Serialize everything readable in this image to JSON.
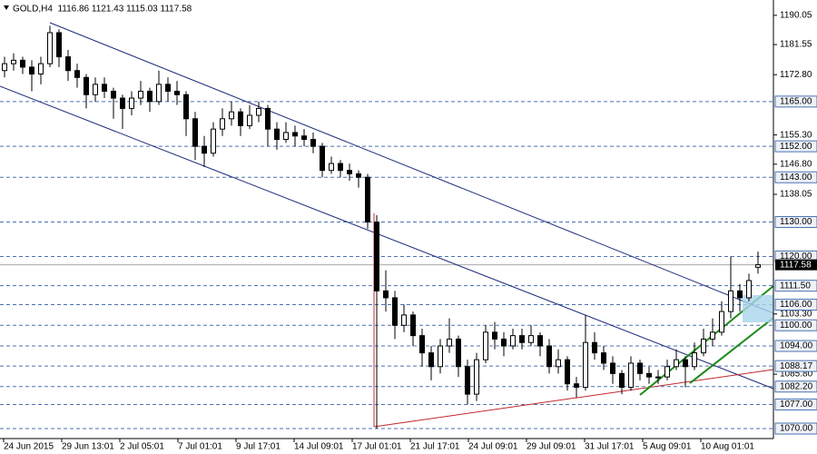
{
  "chart_data": {
    "type": "candlestick",
    "header": "GOLD,H4  1116.86 1121.43 1115.03 1117.58",
    "ylim": [
      1067.1,
      1194.5
    ],
    "yticks": [
      1190.05,
      1181.55,
      {
        "value": 1172.8,
        "label": "1172.80"
      },
      {
        "value": 1155.3,
        "label": "1155.30"
      },
      {
        "value": 1146.8,
        "label": "1146.80"
      },
      1138.05,
      {
        "value": 1103.3,
        "label": "1103.30"
      },
      {
        "value": 1085.8,
        "label": "1085.80"
      }
    ],
    "levels": [
      {
        "value": 1165,
        "label": "1165.00"
      },
      {
        "value": 1152,
        "label": "1152.00"
      },
      {
        "value": 1143,
        "label": "1143.00"
      },
      {
        "value": 1130,
        "label": "1130.00"
      },
      {
        "value": 1120,
        "label": "1120.00"
      },
      {
        "value": 1111.5,
        "label": "1111.50"
      },
      {
        "value": 1106,
        "label": "1106.00"
      },
      {
        "value": 1100,
        "label": "1100.00"
      },
      {
        "value": 1094,
        "label": "1094.00"
      },
      1088.17,
      {
        "value": 1082.2,
        "label": "1082.20"
      },
      {
        "value": 1077,
        "label": "1077.00"
      },
      {
        "value": 1070,
        "label": "1070.00"
      }
    ],
    "current_price": 1117.58,
    "xlabels": [
      "24 Jun 2015",
      "29 Jun 13:01",
      "2 Jul 05:01",
      "7 Jul 01:01",
      "9 Jul 17:01",
      "14 Jul 09:01",
      "17 Jul 01:01",
      "21 Jul 17:01",
      "24 Jul 09:01",
      "29 Jul 09:01",
      "31 Jul 17:01",
      "5 Aug 09:01",
      "10 Aug 01:01"
    ],
    "ohlc": [
      [
        1174,
        1178,
        1172,
        1176
      ],
      [
        1176,
        1179,
        1174,
        1177
      ],
      [
        1177,
        1178,
        1173,
        1175
      ],
      [
        1175,
        1177,
        1168,
        1173
      ],
      [
        1173,
        1178,
        1170,
        1176
      ],
      [
        1176,
        1187,
        1175,
        1185
      ],
      [
        1185,
        1186,
        1175,
        1178
      ],
      [
        1178,
        1180,
        1171,
        1174
      ],
      [
        1174,
        1176,
        1169,
        1172
      ],
      [
        1172,
        1173,
        1163,
        1167
      ],
      [
        1167,
        1172,
        1165,
        1170
      ],
      [
        1170,
        1172,
        1166,
        1168
      ],
      [
        1168,
        1169,
        1160,
        1166
      ],
      [
        1166,
        1167,
        1157,
        1163
      ],
      [
        1163,
        1168,
        1161,
        1166
      ],
      [
        1166,
        1171,
        1164,
        1168
      ],
      [
        1168,
        1169,
        1162,
        1165
      ],
      [
        1165,
        1174,
        1164,
        1170
      ],
      [
        1170,
        1172,
        1165,
        1168
      ],
      [
        1168,
        1171,
        1164,
        1167
      ],
      [
        1167,
        1168,
        1155,
        1160
      ],
      [
        1160,
        1162,
        1148,
        1152
      ],
      [
        1152,
        1155,
        1146,
        1150
      ],
      [
        1150,
        1159,
        1149,
        1157
      ],
      [
        1157,
        1163,
        1155,
        1160
      ],
      [
        1160,
        1165,
        1158,
        1162
      ],
      [
        1162,
        1163,
        1155,
        1158
      ],
      [
        1158,
        1164,
        1157,
        1161
      ],
      [
        1161,
        1165,
        1159,
        1163
      ],
      [
        1163,
        1164,
        1152,
        1157
      ],
      [
        1157,
        1159,
        1151,
        1154
      ],
      [
        1154,
        1159,
        1153,
        1156
      ],
      [
        1156,
        1158,
        1152,
        1155
      ],
      [
        1155,
        1157,
        1152,
        1154
      ],
      [
        1154,
        1156,
        1150,
        1152
      ],
      [
        1152,
        1153,
        1143,
        1145
      ],
      [
        1145,
        1149,
        1144,
        1147
      ],
      [
        1147,
        1148,
        1143,
        1145
      ],
      [
        1145,
        1147,
        1142,
        1144
      ],
      [
        1144,
        1145,
        1140,
        1143
      ],
      [
        1143,
        1144,
        1128,
        1130
      ],
      [
        1130,
        1132,
        1070,
        1110
      ],
      [
        1110,
        1116,
        1104,
        1108
      ],
      [
        1108,
        1110,
        1096,
        1100
      ],
      [
        1100,
        1106,
        1098,
        1103
      ],
      [
        1103,
        1104,
        1094,
        1097
      ],
      [
        1097,
        1099,
        1088,
        1092
      ],
      [
        1092,
        1094,
        1084,
        1088
      ],
      [
        1088,
        1096,
        1086,
        1094
      ],
      [
        1094,
        1102,
        1092,
        1096
      ],
      [
        1096,
        1097,
        1085,
        1088
      ],
      [
        1088,
        1090,
        1077,
        1080
      ],
      [
        1080,
        1092,
        1078,
        1090
      ],
      [
        1090,
        1100,
        1089,
        1098
      ],
      [
        1098,
        1101,
        1093,
        1096
      ],
      [
        1096,
        1098,
        1091,
        1094
      ],
      [
        1094,
        1099,
        1093,
        1097
      ],
      [
        1097,
        1099,
        1093,
        1095
      ],
      [
        1095,
        1100,
        1094,
        1097
      ],
      [
        1097,
        1098,
        1091,
        1094
      ],
      [
        1094,
        1096,
        1086,
        1088
      ],
      [
        1088,
        1093,
        1086,
        1090
      ],
      [
        1090,
        1091,
        1081,
        1083
      ],
      [
        1083,
        1085,
        1079,
        1082
      ],
      [
        1082,
        1103,
        1081,
        1095
      ],
      [
        1095,
        1098,
        1090,
        1092
      ],
      [
        1092,
        1094,
        1087,
        1089
      ],
      [
        1089,
        1091,
        1083,
        1086
      ],
      [
        1086,
        1087,
        1080,
        1082
      ],
      [
        1082,
        1091,
        1081,
        1089
      ],
      [
        1089,
        1090,
        1084,
        1086
      ],
      [
        1086,
        1088,
        1083,
        1085
      ],
      [
        1085,
        1087,
        1083,
        1085
      ],
      [
        1085,
        1090,
        1084,
        1088
      ],
      [
        1088,
        1093,
        1087,
        1090
      ],
      [
        1090,
        1091,
        1082,
        1088
      ],
      [
        1088,
        1095,
        1087,
        1092
      ],
      [
        1092,
        1099,
        1091,
        1096
      ],
      [
        1096,
        1102,
        1094,
        1098
      ],
      [
        1098,
        1107,
        1097,
        1104
      ],
      [
        1104,
        1120,
        1102,
        1110
      ],
      [
        1110,
        1112,
        1104,
        1108
      ],
      [
        1108,
        1115,
        1107,
        1113
      ],
      [
        1116.86,
        1121.43,
        1115.03,
        1117.58
      ]
    ]
  }
}
